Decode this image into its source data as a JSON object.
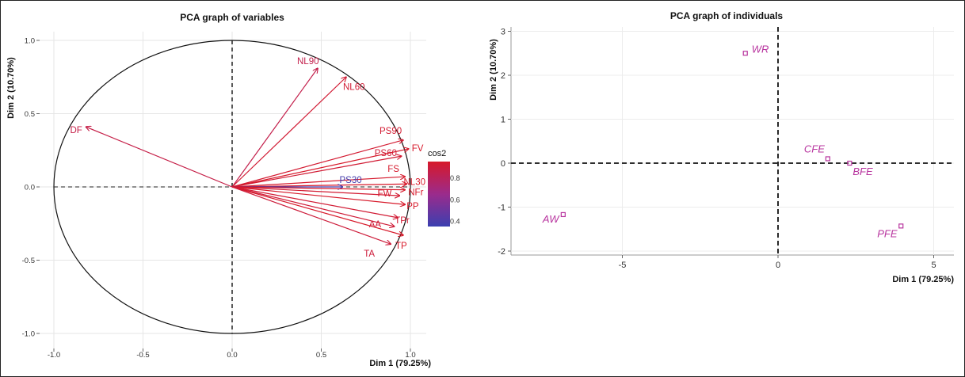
{
  "chart_data": [
    {
      "type": "scatter",
      "subtype": "pca-variables",
      "title": "PCA graph of variables",
      "xlabel": "Dim 1 (79.25%)",
      "ylabel": "Dim 2 (10.70%)",
      "xlim": [
        -1.05,
        1.05
      ],
      "ylim": [
        -1.05,
        1.05
      ],
      "xticks": [
        "-1.0",
        "-0.5",
        "0.0",
        "0.5",
        "1.0"
      ],
      "yticks": [
        "-1.0",
        "-0.5",
        "0.0",
        "0.5",
        "1.0"
      ],
      "xtick_values": [
        -1.0,
        -0.5,
        0.0,
        0.5,
        1.0
      ],
      "ytick_values": [
        -1.0,
        -0.5,
        0.0,
        0.5,
        1.0
      ],
      "legend": {
        "title": "cos2",
        "ticks": [
          "0.8",
          "0.6",
          "0.4"
        ],
        "tick_values": [
          0.8,
          0.6,
          0.4
        ],
        "range": [
          0.35,
          0.95
        ],
        "position": "right"
      },
      "series": [
        {
          "name": "NL90",
          "x": 0.48,
          "y": 0.81,
          "cos2": 0.85
        },
        {
          "name": "NL60",
          "x": 0.64,
          "y": 0.75,
          "cos2": 0.92
        },
        {
          "name": "DF",
          "x": -0.82,
          "y": 0.41,
          "cos2": 0.86
        },
        {
          "name": "PS90",
          "x": 0.96,
          "y": 0.32,
          "cos2": 0.93
        },
        {
          "name": "FV",
          "x": 0.99,
          "y": 0.26,
          "cos2": 0.95
        },
        {
          "name": "PS60",
          "x": 0.95,
          "y": 0.21,
          "cos2": 0.92
        },
        {
          "name": "FS",
          "x": 0.97,
          "y": 0.07,
          "cos2": 0.94
        },
        {
          "name": "NL30",
          "x": 0.98,
          "y": 0.02,
          "cos2": 0.95
        },
        {
          "name": "PS30",
          "x": 0.62,
          "y": 0.0,
          "cos2": 0.38
        },
        {
          "name": "NFr",
          "x": 0.97,
          "y": -0.02,
          "cos2": 0.95
        },
        {
          "name": "FW",
          "x": 0.94,
          "y": -0.06,
          "cos2": 0.93
        },
        {
          "name": "PP",
          "x": 0.97,
          "y": -0.12,
          "cos2": 0.95
        },
        {
          "name": "TPr",
          "x": 0.93,
          "y": -0.21,
          "cos2": 0.92
        },
        {
          "name": "AA",
          "x": 0.91,
          "y": -0.27,
          "cos2": 0.91
        },
        {
          "name": "TP",
          "x": 0.96,
          "y": -0.33,
          "cos2": 0.95
        },
        {
          "name": "TA",
          "x": 0.89,
          "y": -0.39,
          "cos2": 0.9
        }
      ]
    },
    {
      "type": "scatter",
      "subtype": "pca-individuals",
      "title": "PCA graph of individuals",
      "xlabel": "Dim 1 (79.25%)",
      "ylabel": "Dim 2 (10.70%)",
      "xlim": [
        -8.5,
        5.5
      ],
      "ylim": [
        -2.1,
        3.1
      ],
      "xticks": [
        "-5",
        "0",
        "5"
      ],
      "yticks": [
        "3",
        "2",
        "1",
        "0",
        "-1",
        "-2"
      ],
      "xtick_values": [
        -5,
        0,
        5
      ],
      "ytick_values": [
        3,
        2,
        1,
        0,
        -1,
        -2
      ],
      "points": [
        {
          "label": "WR",
          "x": -1.05,
          "y": 2.5
        },
        {
          "label": "CFE",
          "x": 1.6,
          "y": 0.1
        },
        {
          "label": "BFE",
          "x": 2.3,
          "y": 0.0
        },
        {
          "label": "AW",
          "x": -6.9,
          "y": -1.17
        },
        {
          "label": "PFE",
          "x": 3.95,
          "y": -1.43
        }
      ]
    }
  ]
}
